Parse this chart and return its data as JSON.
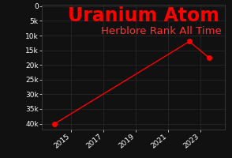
{
  "title": "Uranium Atom",
  "subtitle": "Herblore Rank All Time",
  "background_color": "#111111",
  "plot_background_color": "#111111",
  "grid_color": "#2a2a2a",
  "line_color": "#ff0000",
  "text_color": "#ffffff",
  "title_color": "#ff0000",
  "subtitle_color": "#ff3333",
  "x_data": [
    2014.0,
    2022.3,
    2023.5
  ],
  "y_data": [
    40000,
    12000,
    17500
  ],
  "xlim": [
    2013.2,
    2024.5
  ],
  "ylim": [
    42000,
    -500
  ],
  "xticks": [
    2015,
    2017,
    2019,
    2021,
    2023
  ],
  "yticks": [
    0,
    5000,
    10000,
    15000,
    20000,
    25000,
    30000,
    35000,
    40000
  ],
  "ytick_labels": [
    "0",
    "5k",
    "10k",
    "15k",
    "20k",
    "25k",
    "30k",
    "35k",
    "40k"
  ],
  "title_fontsize": 17,
  "subtitle_fontsize": 9.5,
  "tick_fontsize": 6.5,
  "marker_size": 4
}
